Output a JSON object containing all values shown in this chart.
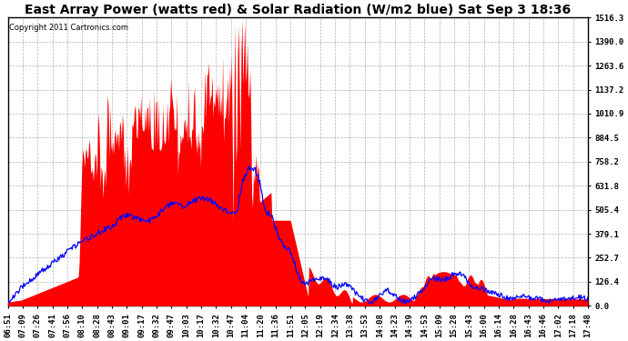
{
  "title": "East Array Power (watts red) & Solar Radiation (W/m2 blue) Sat Sep 3 18:36",
  "copyright": "Copyright 2011 Cartronics.com",
  "bg_color": "#ffffff",
  "y_min": 0.0,
  "y_max": 1516.3,
  "y_ticks": [
    0.0,
    126.4,
    252.7,
    379.1,
    505.4,
    631.8,
    758.2,
    884.5,
    1010.9,
    1137.2,
    1263.6,
    1390.0,
    1516.3
  ],
  "x_labels": [
    "06:51",
    "07:09",
    "07:26",
    "07:41",
    "07:56",
    "08:10",
    "08:28",
    "08:43",
    "09:01",
    "09:17",
    "09:32",
    "09:47",
    "10:03",
    "10:17",
    "10:32",
    "10:47",
    "11:04",
    "11:20",
    "11:36",
    "11:51",
    "12:05",
    "12:19",
    "12:34",
    "13:38",
    "13:53",
    "14:08",
    "14:23",
    "14:39",
    "14:53",
    "15:09",
    "15:28",
    "15:43",
    "16:00",
    "16:14",
    "16:28",
    "16:43",
    "16:46",
    "17:02",
    "17:18",
    "17:48"
  ],
  "title_fontsize": 10,
  "tick_fontsize": 6.5,
  "copyright_fontsize": 6,
  "red_color": "#ff0000",
  "blue_color": "#0000ff",
  "grid_color": "#aaaaaa"
}
